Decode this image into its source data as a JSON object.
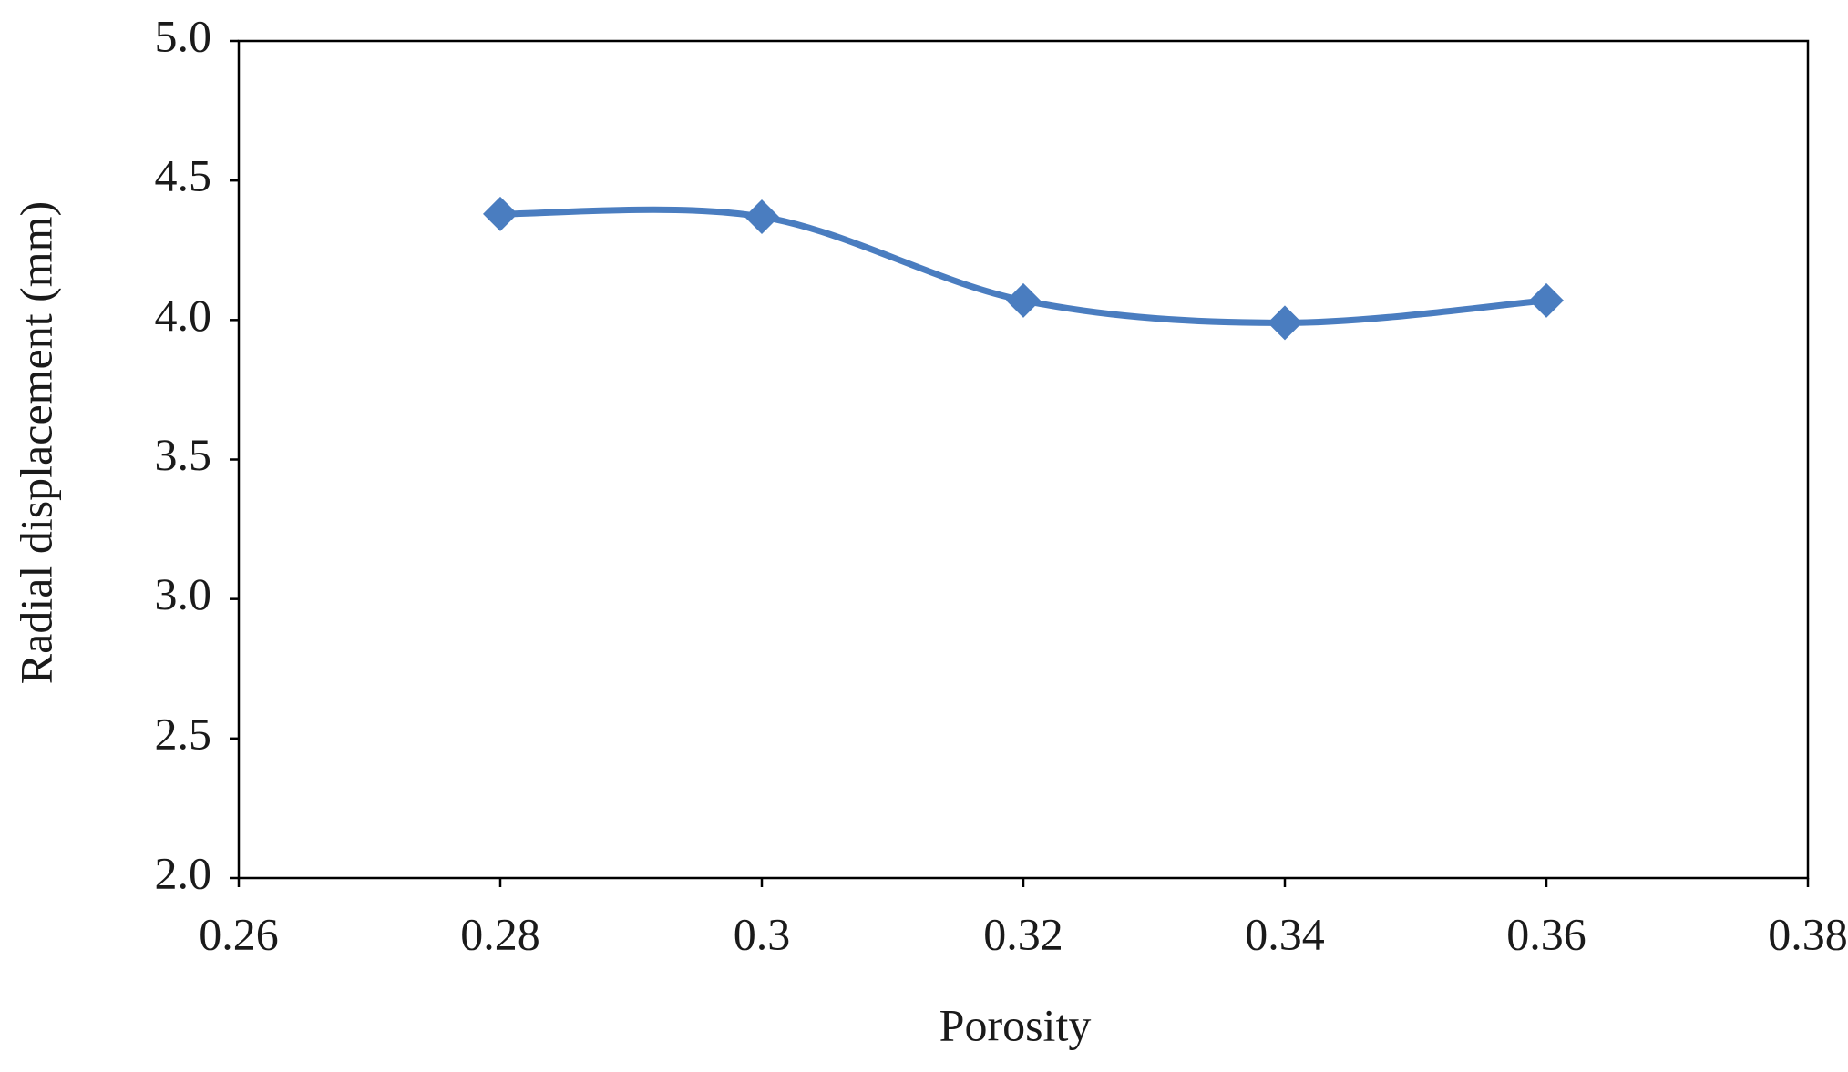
{
  "chart_data": {
    "type": "line",
    "x_label": "Porosity",
    "y_label": "Radial displacement (mm)",
    "x": [
      0.28,
      0.3,
      0.32,
      0.34,
      0.36
    ],
    "series": [
      {
        "color": "#4a7dc0",
        "values": [
          4.38,
          4.37,
          4.07,
          3.99,
          4.07
        ]
      }
    ],
    "smooth": true,
    "marker": "diamond",
    "xlim": [
      0.26,
      0.38
    ],
    "xticks": [
      0.26,
      0.28,
      0.3,
      0.32,
      0.34,
      0.36,
      0.38
    ],
    "ylim": [
      2,
      5
    ],
    "yticks": [
      {
        "value": 2,
        "label": "2.0"
      },
      {
        "value": 2.5,
        "label": "2.5"
      },
      {
        "value": 3,
        "label": "3.0"
      },
      {
        "value": 3.5,
        "label": "3.5"
      },
      {
        "value": 4,
        "label": "4.0"
      },
      {
        "value": 4.5,
        "label": "4.5"
      },
      {
        "value": 5,
        "label": "5.0"
      }
    ],
    "grid": false
  }
}
